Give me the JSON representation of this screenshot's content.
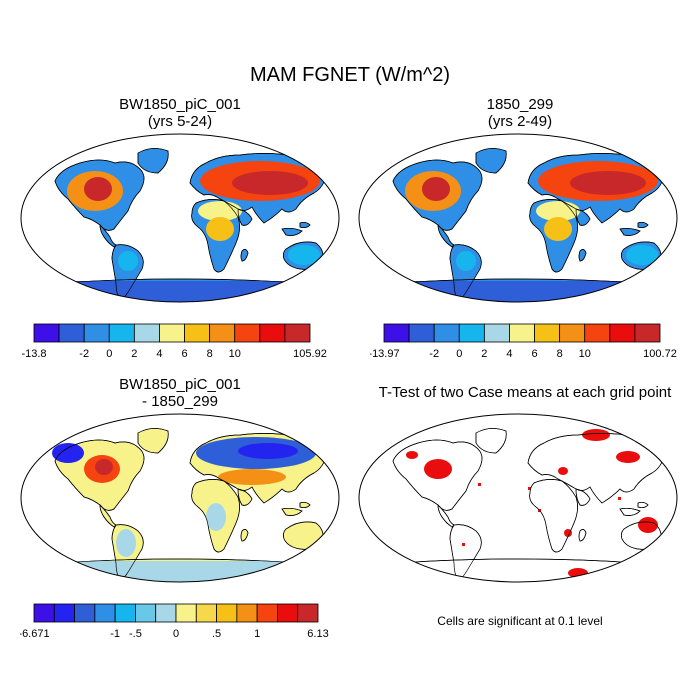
{
  "title": "MAM FGNET (W/m^2)",
  "panels": [
    {
      "title_line1": "BW1850_piC_001",
      "title_line2": "(yrs 5-24)"
    },
    {
      "title_line1": "1850_299",
      "title_line2": "(yrs 2-49)"
    },
    {
      "title_line1": "BW1850_piC_001",
      "title_line2": "- 1850_299"
    },
    {
      "title_line1": "T-Test of two Case means at each grid point",
      "title_line2": ""
    }
  ],
  "colorbars": [
    {
      "colors": [
        "#3c10e6",
        "#2f5fd8",
        "#2f8fe6",
        "#17b5ee",
        "#a8d8e8",
        "#f7f28a",
        "#f7c017",
        "#f59016",
        "#f5440f",
        "#ea0d0d",
        "#c9282b"
      ],
      "labels": [
        "-13.8",
        "-2",
        "0",
        "2",
        "4",
        "6",
        "8",
        "10",
        "105.92"
      ],
      "label_after_box": [
        0,
        2,
        3,
        4,
        5,
        6,
        7,
        8,
        11
      ]
    },
    {
      "colors": [
        "#3c10e6",
        "#2f5fd8",
        "#2f8fe6",
        "#17b5ee",
        "#a8d8e8",
        "#f7f28a",
        "#f7c017",
        "#f59016",
        "#f5440f",
        "#ea0d0d",
        "#c9282b"
      ],
      "labels": [
        "-13.97",
        "-2",
        "0",
        "2",
        "4",
        "6",
        "8",
        "10",
        "100.72"
      ],
      "label_after_box": [
        0,
        2,
        3,
        4,
        5,
        6,
        7,
        8,
        11
      ]
    },
    {
      "colors": [
        "#3c10e6",
        "#2424f0",
        "#2f5fd8",
        "#2f8fe6",
        "#17b5ee",
        "#68c8e8",
        "#a8d8e8",
        "#f7f28a",
        "#f7d84a",
        "#f7c017",
        "#f59016",
        "#f5440f",
        "#ea0d0d",
        "#c9282b"
      ],
      "labels": [
        "-6.671",
        "-1",
        "-.5",
        "0",
        ".5",
        "1",
        "6.13"
      ],
      "label_after_box": [
        0,
        4,
        5,
        7,
        9,
        11,
        14
      ]
    }
  ],
  "significance_note": "Cells are significant at 0.1 level"
}
